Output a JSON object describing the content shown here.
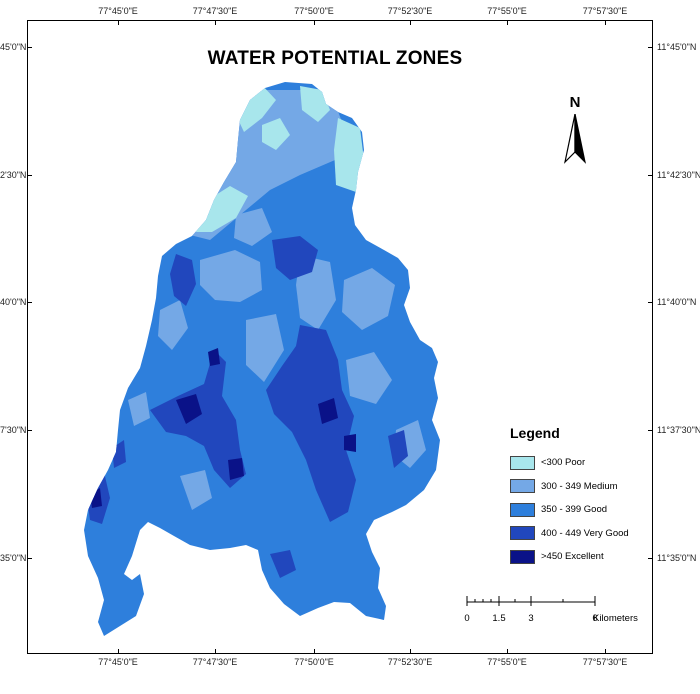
{
  "title": "WATER POTENTIAL ZONES",
  "north_label": "N",
  "graticule": {
    "top": [
      "77°45'0\"E",
      "77°47'30\"E",
      "77°50'0\"E",
      "77°52'30\"E",
      "77°55'0\"E",
      "77°57'30\"E"
    ],
    "bottom": [
      "77°45'0\"E",
      "77°47'30\"E",
      "77°50'0\"E",
      "77°52'30\"E",
      "77°55'0\"E",
      "77°57'30\"E"
    ],
    "left": [
      "45'0\"N",
      "2'30\"N",
      "40'0\"N",
      "7'30\"N",
      "35'0\"N"
    ],
    "right": [
      "11°45'0\"N",
      "11°42'30\"N",
      "11°40'0\"N",
      "11°37'30\"N",
      "11°35'0\"N"
    ]
  },
  "legend": {
    "title": "Legend",
    "items": [
      {
        "label": "<300 Poor",
        "color": "#a8e6ec"
      },
      {
        "label": "300 - 349 Medium",
        "color": "#74a8e6"
      },
      {
        "label": "350 - 399 Good",
        "color": "#2e7fdc"
      },
      {
        "label": "400 - 449 Very Good",
        "color": "#2147bd"
      },
      {
        "label": ">450 Excellent",
        "color": "#0a1288"
      }
    ]
  },
  "scale_bar": {
    "labels": [
      "0",
      "1.5",
      "3",
      "6"
    ],
    "unit": "Kilometers"
  }
}
